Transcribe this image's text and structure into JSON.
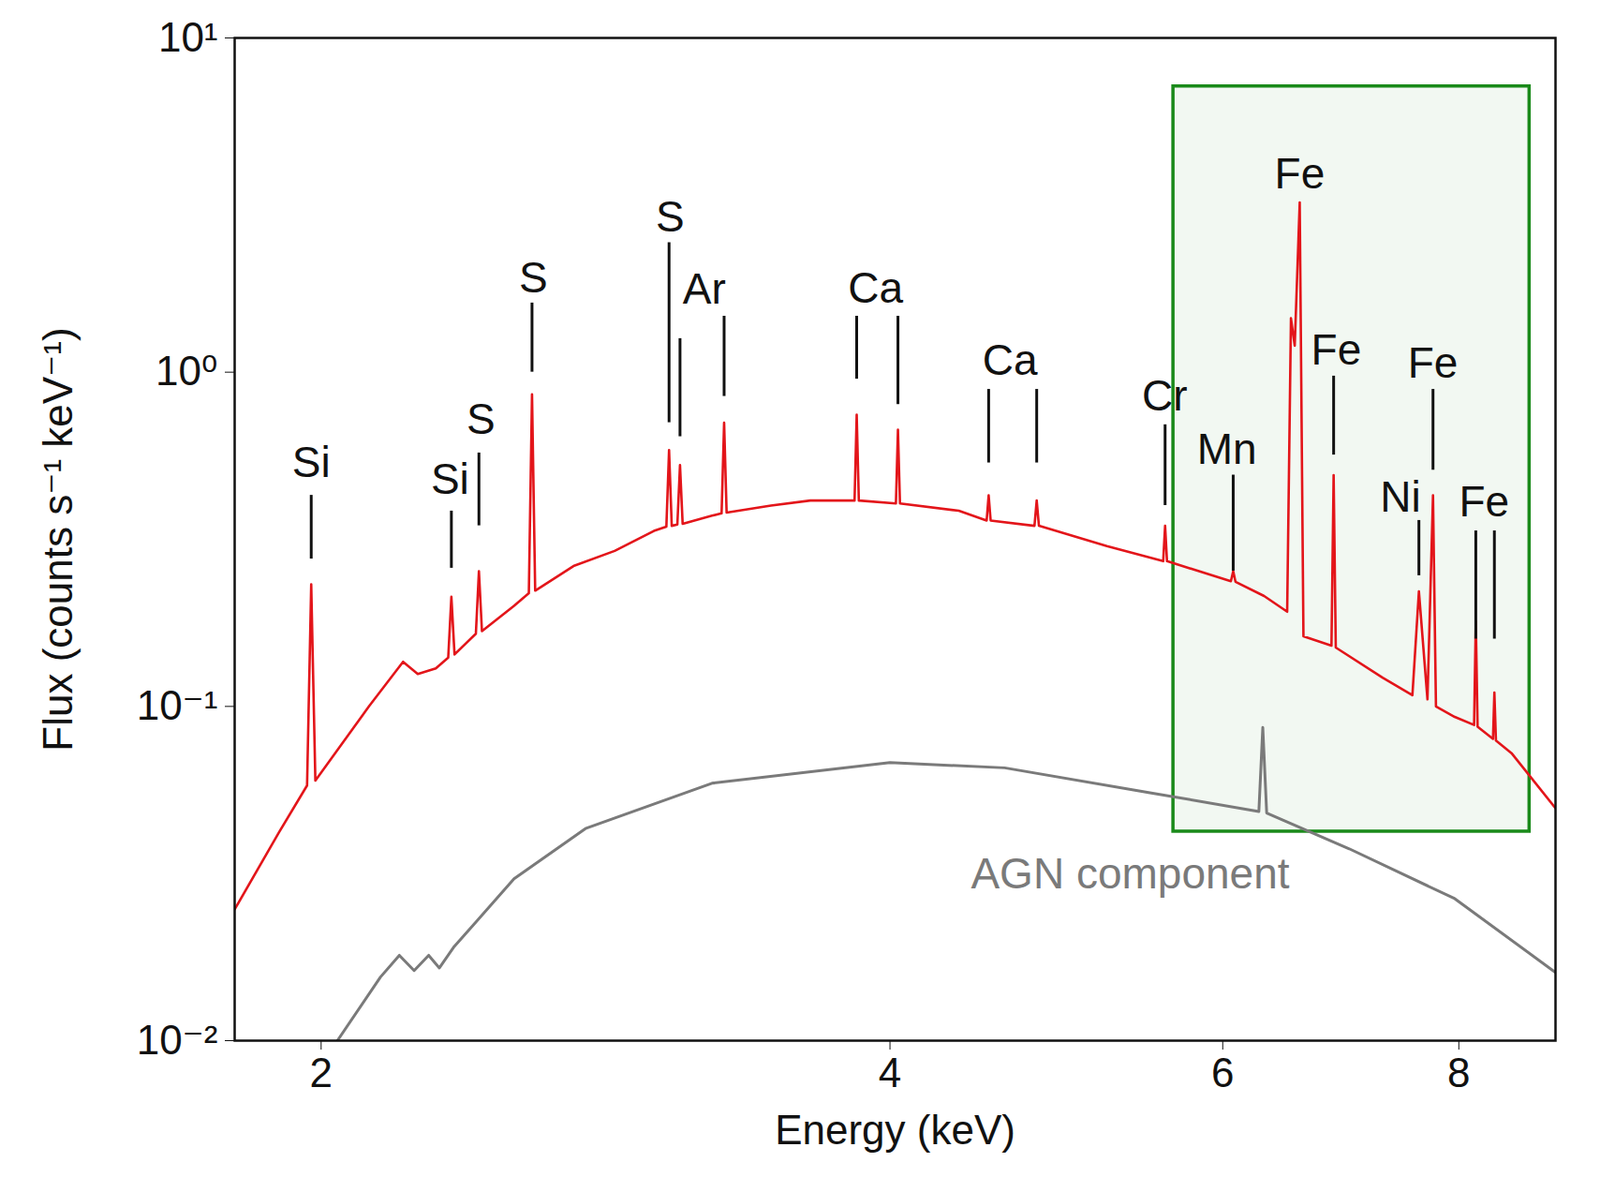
{
  "chart_data": {
    "type": "line",
    "x_label": "Energy (keV)",
    "y_label": "Flux (counts s⁻¹ keV⁻¹)",
    "log": true,
    "grid": false,
    "xlim": [
      1.8,
      9.0
    ],
    "ylim": [
      0.01,
      10
    ],
    "xticks": [
      2,
      4,
      6,
      8
    ],
    "yticks": [
      {
        "value": 0.01,
        "label": "10⁻²"
      },
      {
        "value": 0.1,
        "label": "10⁻¹"
      },
      {
        "value": 1,
        "label": "10⁰"
      },
      {
        "value": 10,
        "label": "10¹"
      }
    ],
    "series": [
      {
        "color": "#e3151a",
        "x": [
          1.8,
          1.9,
          1.966,
          1.976,
          1.986,
          2.12,
          2.21,
          2.25,
          2.3,
          2.335,
          2.344,
          2.353,
          2.415,
          2.424,
          2.433,
          2.53,
          2.576,
          2.586,
          2.596,
          2.72,
          2.86,
          3.0,
          3.046,
          3.056,
          3.066,
          3.087,
          3.097,
          3.107,
          3.22,
          3.258,
          3.268,
          3.278,
          3.46,
          3.63,
          3.831,
          3.841,
          3.851,
          4.029,
          4.039,
          4.049,
          4.35,
          4.5,
          4.511,
          4.522,
          4.77,
          4.783,
          4.796,
          5.21,
          5.58,
          5.593,
          5.606,
          6.06,
          6.077,
          6.094,
          6.31,
          6.49,
          6.52,
          6.55,
          6.59,
          6.62,
          6.85,
          6.868,
          6.886,
          7.29,
          7.56,
          7.62,
          7.7,
          7.752,
          7.78,
          7.96,
          8.15,
          8.167,
          8.185,
          8.34,
          8.354,
          8.37,
          8.53,
          9.0
        ],
        "values": [
          0.0247,
          0.042,
          0.058,
          0.232,
          0.06,
          0.1,
          0.136,
          0.125,
          0.13,
          0.14,
          0.213,
          0.143,
          0.165,
          0.254,
          0.168,
          0.2,
          0.218,
          0.858,
          0.222,
          0.263,
          0.292,
          0.335,
          0.345,
          0.585,
          0.347,
          0.35,
          0.527,
          0.352,
          0.372,
          0.378,
          0.706,
          0.38,
          0.399,
          0.413,
          0.413,
          0.746,
          0.413,
          0.405,
          0.673,
          0.405,
          0.385,
          0.36,
          0.428,
          0.36,
          0.347,
          0.413,
          0.347,
          0.302,
          0.272,
          0.347,
          0.272,
          0.237,
          0.254,
          0.236,
          0.214,
          0.192,
          1.45,
          1.2,
          3.22,
          0.162,
          0.152,
          0.492,
          0.15,
          0.122,
          0.108,
          0.221,
          0.105,
          0.428,
          0.1,
          0.093,
          0.088,
          0.18,
          0.087,
          0.08,
          0.11,
          0.079,
          0.0725,
          0.0496
        ]
      },
      {
        "name": "AGN component",
        "color": "#7a7a7a",
        "label_position": {
          "x": 5.36,
          "y": 0.0315
        },
        "x": [
          2.04,
          2.15,
          2.2,
          2.24,
          2.28,
          2.31,
          2.35,
          2.53,
          2.76,
          3.22,
          4.0,
          4.6,
          5.5,
          6.27,
          6.3,
          6.33,
          7.0,
          7.96,
          9.0
        ],
        "values": [
          0.01,
          0.0155,
          0.018,
          0.0162,
          0.018,
          0.0165,
          0.019,
          0.0305,
          0.0431,
          0.0589,
          0.0679,
          0.0655,
          0.0551,
          0.0485,
          0.0865,
          0.048,
          0.0375,
          0.0266,
          0.016
        ]
      }
    ],
    "annotations": [
      {
        "text": "Si",
        "x": 1.976,
        "y": 0.534,
        "lines": [
          {
            "x": 1.976,
            "y1": 0.428,
            "y2": 0.276
          }
        ]
      },
      {
        "text": "Si",
        "x": 2.34,
        "y": 0.475,
        "lines": [
          {
            "x": 2.344,
            "y1": 0.384,
            "y2": 0.259
          }
        ]
      },
      {
        "text": "S",
        "x": 2.43,
        "y": 0.721,
        "lines": [
          {
            "x": 2.424,
            "y1": 0.573,
            "y2": 0.347
          }
        ]
      },
      {
        "text": "S",
        "x": 2.59,
        "y": 1.91,
        "lines": [
          {
            "x": 2.586,
            "y1": 1.61,
            "y2": 1.0
          }
        ]
      },
      {
        "text": "S",
        "x": 3.06,
        "y": 2.9,
        "lines": [
          {
            "x": 3.056,
            "y1": 2.44,
            "y2": 0.706
          }
        ]
      },
      {
        "text": "Ar",
        "x": 3.19,
        "y": 1.76,
        "lines": [
          {
            "x": 3.097,
            "y1": 1.26,
            "y2": 0.641
          },
          {
            "x": 3.268,
            "y1": 1.47,
            "y2": 0.846
          }
        ]
      },
      {
        "text": "Ca",
        "x": 3.93,
        "y": 1.78,
        "lines": [
          {
            "x": 3.841,
            "y1": 1.47,
            "y2": 0.953
          },
          {
            "x": 4.039,
            "y1": 1.47,
            "y2": 0.8
          }
        ]
      },
      {
        "text": "Ca",
        "x": 4.63,
        "y": 1.08,
        "lines": [
          {
            "x": 4.511,
            "y1": 0.888,
            "y2": 0.535
          },
          {
            "x": 4.783,
            "y1": 0.888,
            "y2": 0.535
          }
        ]
      },
      {
        "text": "Cr",
        "x": 5.59,
        "y": 0.846,
        "lines": [
          {
            "x": 5.593,
            "y1": 0.696,
            "y2": 0.399
          }
        ]
      },
      {
        "text": "Mn",
        "x": 6.03,
        "y": 0.585,
        "lines": [
          {
            "x": 6.077,
            "y1": 0.492,
            "y2": 0.254
          }
        ]
      },
      {
        "text": "Fe",
        "x": 6.59,
        "y": 3.91,
        "lines": []
      },
      {
        "text": "Fe",
        "x": 6.89,
        "y": 1.16,
        "lines": [
          {
            "x": 6.868,
            "y1": 0.973,
            "y2": 0.565
          }
        ]
      },
      {
        "text": "Fe",
        "x": 7.75,
        "y": 1.06,
        "lines": [
          {
            "x": 7.752,
            "y1": 0.888,
            "y2": 0.509
          }
        ]
      },
      {
        "text": "Ni",
        "x": 7.45,
        "y": 0.422,
        "lines": [
          {
            "x": 7.62,
            "y1": 0.36,
            "y2": 0.246
          }
        ]
      },
      {
        "text": "Fe",
        "x": 8.25,
        "y": 0.408,
        "lines": [
          {
            "x": 8.167,
            "y1": 0.335,
            "y2": 0.159
          },
          {
            "x": 8.354,
            "y1": 0.335,
            "y2": 0.159
          }
        ]
      }
    ],
    "highlight": {
      "x": [
        5.65,
        8.72
      ],
      "y": [
        0.0422,
        7.16
      ],
      "color": "#1a8a1a"
    }
  }
}
